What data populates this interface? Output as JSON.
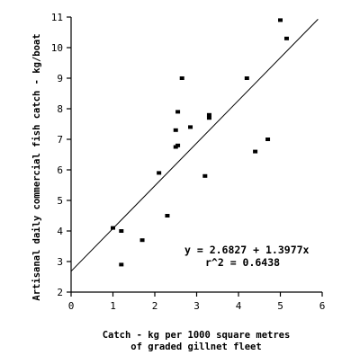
{
  "chart_data": {
    "type": "scatter",
    "title": "",
    "xlabel": "Catch - kg per 1000 square metres",
    "xlabel_line2": "of graded gillnet fleet",
    "ylabel": "Artisanal daily commercial fish catch - kg/boat",
    "xlim": [
      0,
      6
    ],
    "ylim": [
      2,
      11
    ],
    "x_ticks": [
      0,
      1,
      2,
      3,
      4,
      5,
      6
    ],
    "y_ticks": [
      2,
      3,
      4,
      5,
      6,
      7,
      8,
      9,
      10,
      11
    ],
    "grid": false,
    "legend": "none",
    "marker": "square",
    "color": "#000000",
    "points": [
      {
        "x": 1.0,
        "y": 4.1
      },
      {
        "x": 1.2,
        "y": 4.0
      },
      {
        "x": 1.2,
        "y": 2.9
      },
      {
        "x": 1.7,
        "y": 3.7
      },
      {
        "x": 2.1,
        "y": 5.9
      },
      {
        "x": 2.3,
        "y": 4.5
      },
      {
        "x": 2.5,
        "y": 7.3
      },
      {
        "x": 2.5,
        "y": 6.75
      },
      {
        "x": 2.55,
        "y": 7.9
      },
      {
        "x": 2.55,
        "y": 6.8
      },
      {
        "x": 2.65,
        "y": 9.0
      },
      {
        "x": 2.85,
        "y": 7.4
      },
      {
        "x": 3.2,
        "y": 5.8
      },
      {
        "x": 3.3,
        "y": 7.8
      },
      {
        "x": 3.3,
        "y": 7.7
      },
      {
        "x": 4.2,
        "y": 9.0
      },
      {
        "x": 4.4,
        "y": 6.6
      },
      {
        "x": 4.7,
        "y": 7.0
      },
      {
        "x": 5.0,
        "y": 10.9
      },
      {
        "x": 5.15,
        "y": 10.3
      }
    ],
    "regression": {
      "intercept": 2.6827,
      "slope": 1.3977,
      "x_start": 0,
      "x_end": 5.9
    },
    "annotations": {
      "equation": "y = 2.6827 + 1.3977x",
      "r_squared": "r^2 = 0.6438"
    }
  }
}
